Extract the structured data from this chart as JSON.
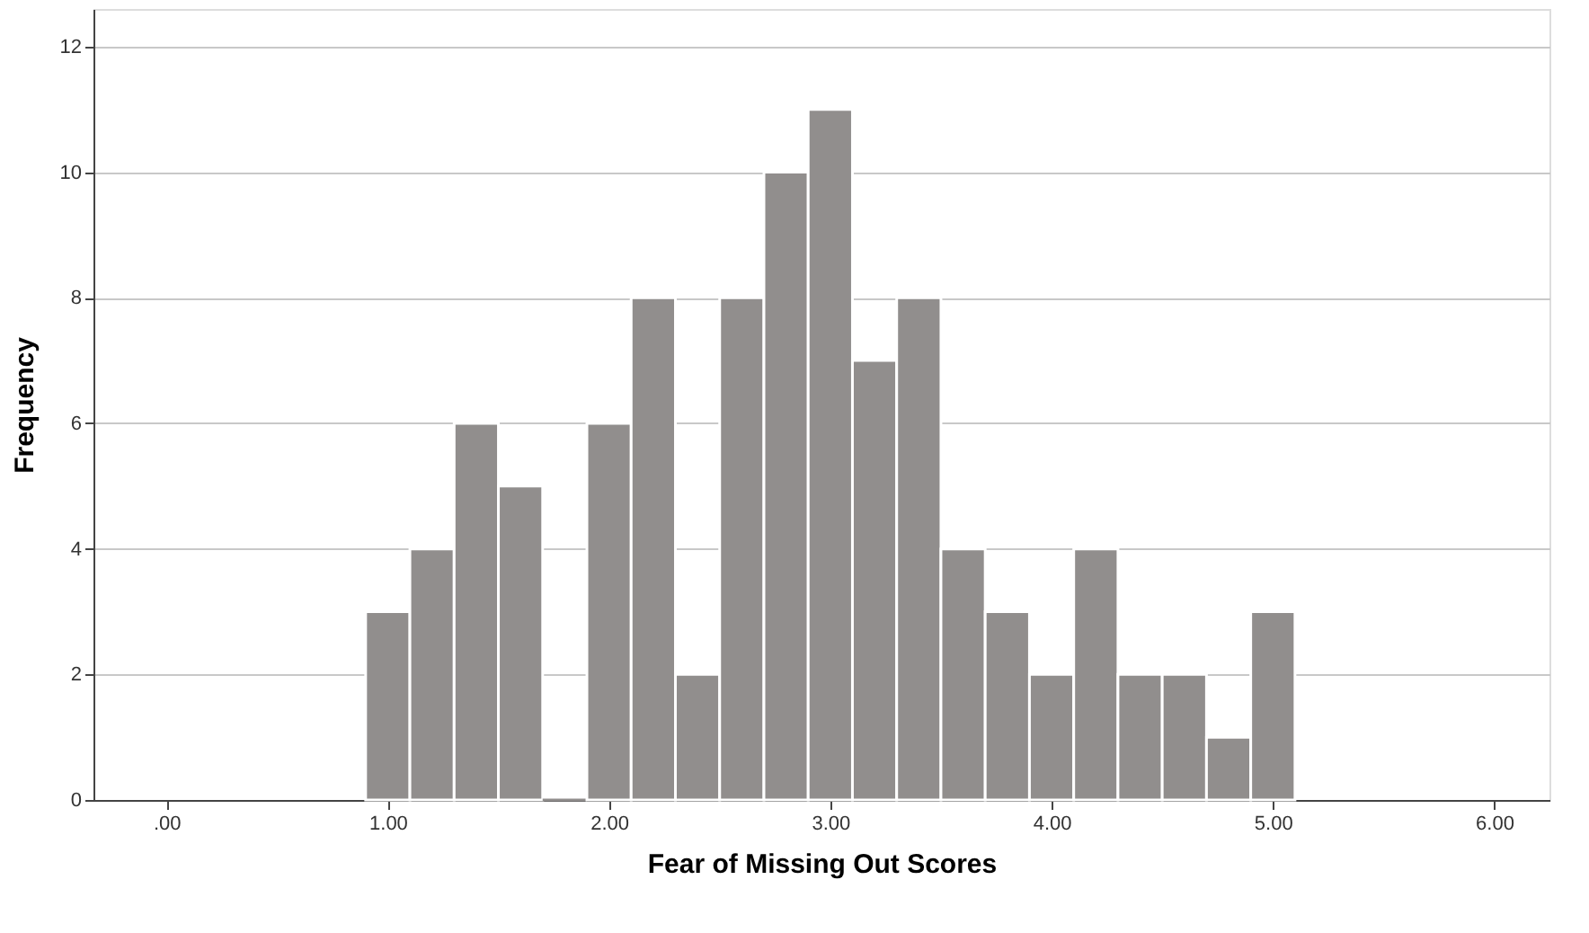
{
  "chart_data": {
    "type": "histogram",
    "xlabel": "Fear of Missing Out Scores",
    "ylabel": "Frequency",
    "bins": [
      0.9,
      1.1,
      1.3,
      1.5,
      1.7,
      1.9,
      2.1,
      2.3,
      2.5,
      2.7,
      2.9,
      3.1,
      3.3,
      3.5,
      3.7,
      3.9,
      4.1,
      4.3,
      4.5,
      4.7,
      4.9,
      5.1
    ],
    "values": [
      3,
      4,
      6,
      5,
      0,
      6,
      8,
      2,
      8,
      10,
      11,
      7,
      8,
      4,
      3,
      2,
      4,
      2,
      2,
      1,
      3
    ],
    "color": "#918e8d",
    "xlim": [
      -0.33,
      6.25
    ],
    "xticks": [
      {
        "value": 0,
        "label": ".00"
      },
      {
        "value": 1,
        "label": "1.00"
      },
      {
        "value": 2,
        "label": "2.00"
      },
      {
        "value": 3,
        "label": "3.00"
      },
      {
        "value": 4,
        "label": "4.00"
      },
      {
        "value": 5,
        "label": "5.00"
      },
      {
        "value": 6,
        "label": "6.00"
      }
    ],
    "ylim": [
      0,
      12.6
    ],
    "yticks": [
      0,
      2,
      4,
      6,
      8,
      10,
      12
    ],
    "grid": "y"
  }
}
